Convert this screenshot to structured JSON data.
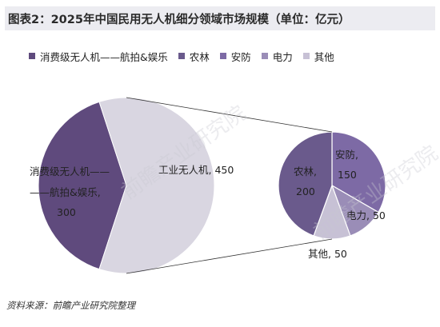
{
  "title": "图表2：2025年中国民用无人机细分领域市场规模（单位：亿元）",
  "source": "资料来源：前瞻产业研究院整理",
  "watermark": "前瞻产业研究院",
  "chart_data": {
    "type": "pie",
    "subtype": "pie-of-pie",
    "unit": "亿元",
    "main_pie": {
      "slices": [
        {
          "label": "消费级无人机——航拍&娱乐",
          "value": 300,
          "color": "#5f4a7d"
        },
        {
          "label": "工业无人机",
          "value": 450,
          "color": "#d9d6e1"
        }
      ]
    },
    "secondary_pie": {
      "slices": [
        {
          "label": "农林",
          "value": 200,
          "color": "#6a5a8c"
        },
        {
          "label": "安防",
          "value": 150,
          "color": "#7d6aa5"
        },
        {
          "label": "电力",
          "value": 50,
          "color": "#9a8db7"
        },
        {
          "label": "其他",
          "value": 50,
          "color": "#c7c1d5"
        }
      ]
    },
    "data_labels": {
      "consumer": [
        "消费级无人机——",
        "——航拍&娱乐,",
        "300"
      ],
      "industrial": "工业无人机, 450",
      "agri": [
        "农林,",
        "200"
      ],
      "security": [
        "安防,",
        "150"
      ],
      "power": "电力, 50",
      "other": "其他, 50"
    },
    "legend": {
      "position": "top",
      "entries": [
        {
          "label": "消费级无人机——航拍&娱乐",
          "color": "#5f4a7d"
        },
        {
          "label": "农林",
          "color": "#6a5a8c"
        },
        {
          "label": "安防",
          "color": "#7d6aa5"
        },
        {
          "label": "电力",
          "color": "#9a8db7"
        },
        {
          "label": "其他",
          "color": "#c7c1d5"
        }
      ]
    }
  }
}
